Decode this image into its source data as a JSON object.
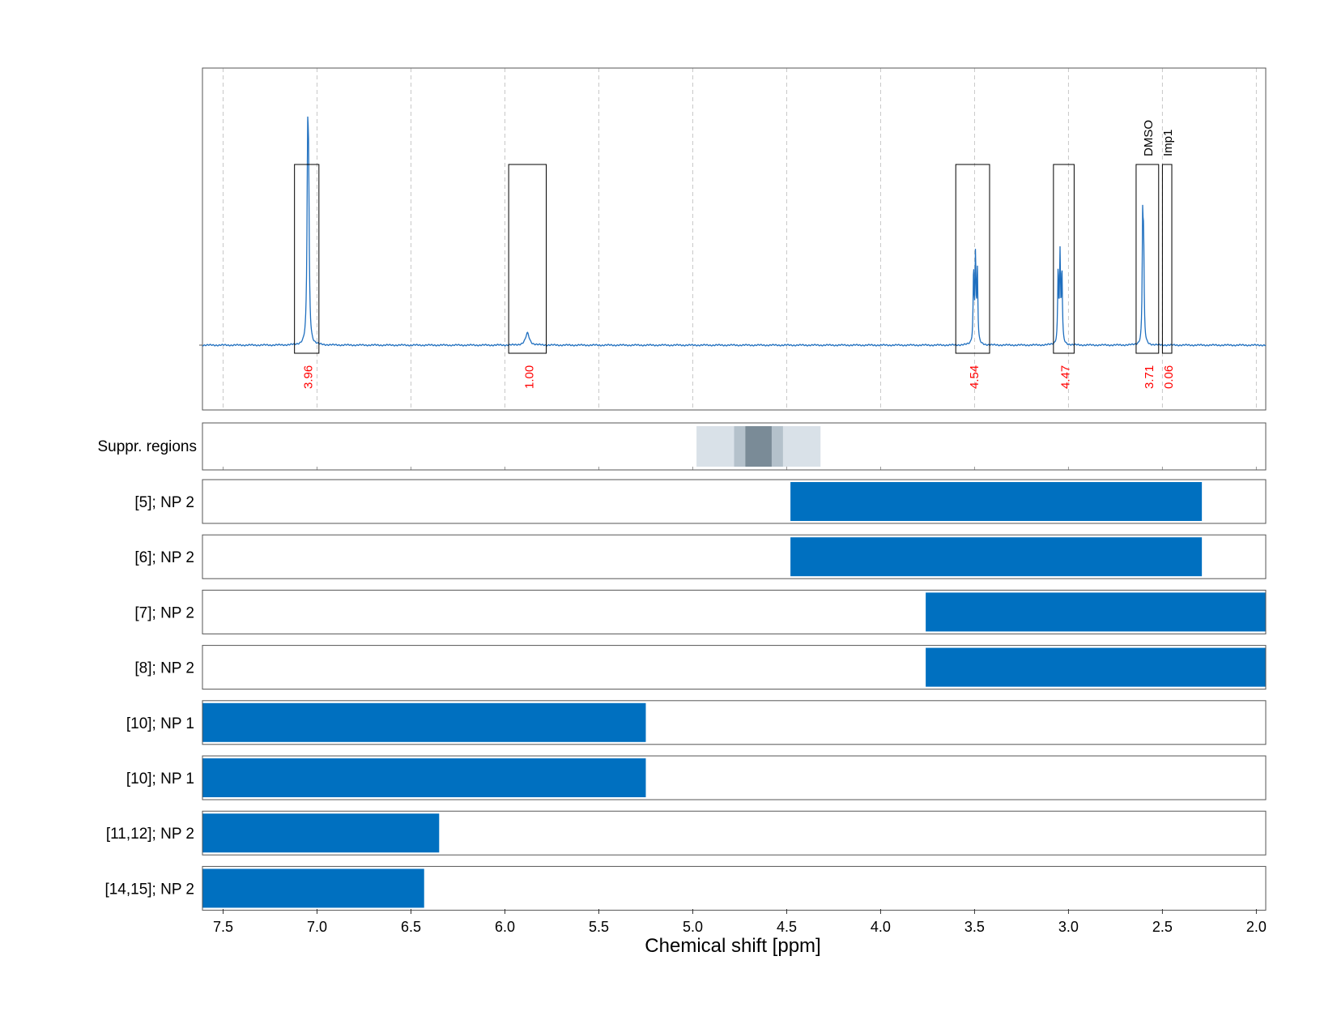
{
  "chart_data": {
    "type": "line",
    "xlabel": "Chemical shift [ppm]",
    "xlim": [
      7.61,
      1.95
    ],
    "x_ticks": [
      "7.5",
      "7.0",
      "6.5",
      "6.0",
      "5.5",
      "5.0",
      "4.5",
      "4.0",
      "3.5",
      "3.0",
      "2.5",
      "2.0"
    ],
    "x_tick_values": [
      7.5,
      7.0,
      6.5,
      6.0,
      5.5,
      5.0,
      4.5,
      4.0,
      3.5,
      3.0,
      2.5,
      2.0
    ],
    "grid": true,
    "spectrum": {
      "color": "#1f6fbf",
      "peaks": [
        {
          "center": 7.05,
          "height": 1.0,
          "width": 0.004
        },
        {
          "center": 7.045,
          "height": 0.78,
          "width": 0.004
        },
        {
          "center": 5.88,
          "height": 0.07,
          "width": 0.012
        },
        {
          "center": 3.495,
          "height": 0.5,
          "width": 0.003
        },
        {
          "center": 3.485,
          "height": 0.42,
          "width": 0.003
        },
        {
          "center": 3.505,
          "height": 0.42,
          "width": 0.003
        },
        {
          "center": 3.045,
          "height": 0.5,
          "width": 0.003
        },
        {
          "center": 3.035,
          "height": 0.42,
          "width": 0.003
        },
        {
          "center": 3.055,
          "height": 0.42,
          "width": 0.003
        },
        {
          "center": 2.605,
          "height": 0.69,
          "width": 0.003
        },
        {
          "center": 2.6,
          "height": 0.52,
          "width": 0.003
        }
      ]
    },
    "integration_regions": [
      {
        "from": 7.12,
        "to": 6.99,
        "value": "3.96"
      },
      {
        "from": 5.98,
        "to": 5.78,
        "value": "1.00"
      },
      {
        "from": 3.6,
        "to": 3.42,
        "value": "4.54"
      },
      {
        "from": 3.08,
        "to": 2.97,
        "value": "4.47"
      },
      {
        "from": 2.64,
        "to": 2.52,
        "value": "3.71",
        "label": "DMSO"
      },
      {
        "from": 2.5,
        "to": 2.45,
        "value": "0.06",
        "label": "Imp1"
      }
    ],
    "integral_color": "#ff0000",
    "suppression_regions": {
      "label": "Suppr. regions",
      "bands": [
        {
          "from": 4.98,
          "to": 4.32,
          "shade": "#d9e1e8"
        },
        {
          "from": 4.78,
          "to": 4.52,
          "shade": "#b4c1cb"
        },
        {
          "from": 4.72,
          "to": 4.58,
          "shade": "#7a8b97"
        }
      ]
    },
    "ranges": [
      {
        "label": "[5]; NP 2",
        "from": 4.48,
        "to": 2.29
      },
      {
        "label": "[6]; NP 2",
        "from": 4.48,
        "to": 2.29
      },
      {
        "label": "[7]; NP 2",
        "from": 3.76,
        "to": 1.95
      },
      {
        "label": "[8]; NP 2",
        "from": 3.76,
        "to": 1.95
      },
      {
        "label": "[10]; NP 1",
        "from": 7.61,
        "to": 5.25
      },
      {
        "label": "[10]; NP 1",
        "from": 7.61,
        "to": 5.25
      },
      {
        "label": "[11,12]; NP 2",
        "from": 7.61,
        "to": 6.35
      },
      {
        "label": "[14,15]; NP 2",
        "from": 7.61,
        "to": 6.43
      }
    ],
    "bar_color": "#0070c0"
  }
}
